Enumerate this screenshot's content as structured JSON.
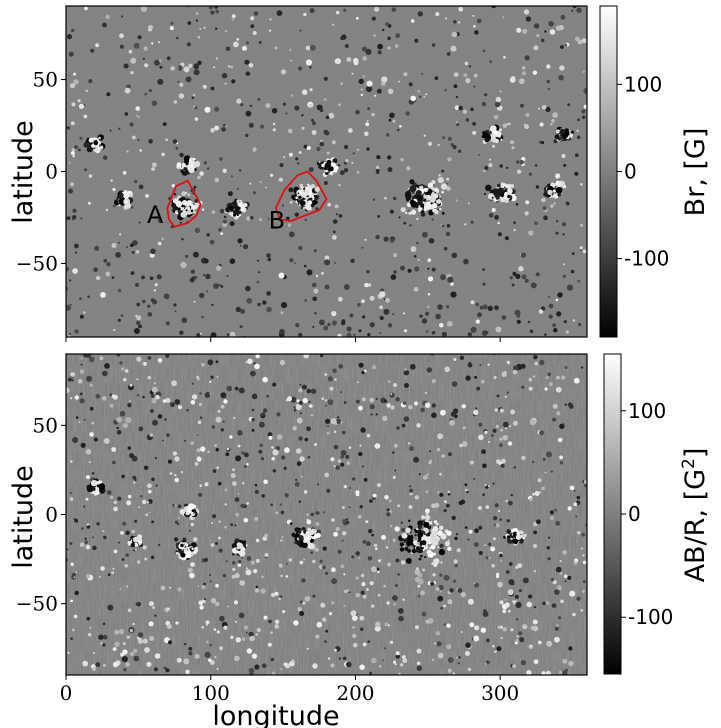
{
  "chart_data": [
    {
      "type": "heatmap",
      "title": "",
      "xlabel": "",
      "ylabel": "latitude",
      "xlim": [
        0,
        360
      ],
      "ylim": [
        -90,
        90
      ],
      "x_ticks": [
        0,
        100,
        200,
        300
      ],
      "y_ticks": [
        50,
        0,
        -50
      ],
      "y_tick_labels": [
        "50",
        "0",
        "−50"
      ],
      "x_tick_labels_shown": false,
      "colormap": "gray",
      "colorbar": {
        "label": "Br, [G]",
        "range": [
          -190,
          190
        ],
        "ticks": [
          100,
          0,
          -100
        ],
        "tick_labels": [
          "100",
          "0",
          "-100"
        ]
      },
      "active_regions": [
        {
          "x": 248,
          "y": -15,
          "strength": 1.0,
          "spread": 14
        },
        {
          "x": 165,
          "y": -14,
          "strength": 0.9,
          "spread": 9
        },
        {
          "x": 82,
          "y": -20,
          "strength": 0.8,
          "spread": 7
        },
        {
          "x": 182,
          "y": 3,
          "strength": 0.5,
          "spread": 6
        },
        {
          "x": 85,
          "y": 3,
          "strength": 0.5,
          "spread": 6
        },
        {
          "x": 20,
          "y": 15,
          "strength": 0.4,
          "spread": 5
        },
        {
          "x": 300,
          "y": -12,
          "strength": 0.6,
          "spread": 8
        },
        {
          "x": 336,
          "y": -10,
          "strength": 0.5,
          "spread": 6
        },
        {
          "x": 118,
          "y": -20,
          "strength": 0.5,
          "spread": 6
        },
        {
          "x": 40,
          "y": -15,
          "strength": 0.4,
          "spread": 5
        },
        {
          "x": 295,
          "y": 20,
          "strength": 0.4,
          "spread": 6
        },
        {
          "x": 345,
          "y": 20,
          "strength": 0.4,
          "spread": 5
        }
      ],
      "annotations": [
        {
          "text": "A",
          "x": 56,
          "y": -28
        },
        {
          "text": "B",
          "x": 140,
          "y": -31
        }
      ],
      "contours": [
        {
          "name": "A",
          "color": "#e01010",
          "points": [
            [
              70,
              -20
            ],
            [
              76,
              -8
            ],
            [
              84,
              -5
            ],
            [
              89,
              -12
            ],
            [
              93,
              -18
            ],
            [
              90,
              -24
            ],
            [
              84,
              -28
            ],
            [
              75,
              -30
            ],
            [
              71,
              -26
            ]
          ]
        },
        {
          "name": "B",
          "color": "#e01010",
          "points": [
            [
              145,
              -20
            ],
            [
              151,
              -10
            ],
            [
              160,
              -2
            ],
            [
              167,
              0
            ],
            [
              173,
              -5
            ],
            [
              180,
              -15
            ],
            [
              175,
              -21
            ],
            [
              165,
              -24
            ],
            [
              155,
              -27
            ],
            [
              148,
              -26
            ]
          ]
        }
      ]
    },
    {
      "type": "heatmap",
      "title": "",
      "xlabel": "longitude",
      "ylabel": "latitude",
      "xlim": [
        0,
        360
      ],
      "ylim": [
        -90,
        90
      ],
      "x_ticks": [
        0,
        100,
        200,
        300
      ],
      "x_tick_labels": [
        "0",
        "100",
        "200",
        "300"
      ],
      "y_ticks": [
        50,
        0,
        -50
      ],
      "y_tick_labels": [
        "50",
        "0",
        "−50"
      ],
      "colormap": "gray",
      "colorbar": {
        "label_main": "AB/R, [G",
        "label_sup": "2",
        "label_end": "]",
        "range": [
          -155,
          155
        ],
        "ticks": [
          100,
          0,
          -100
        ],
        "tick_labels": [
          "100",
          "0",
          "-100"
        ]
      },
      "active_regions": [
        {
          "x": 245,
          "y": -15,
          "strength": 1.0,
          "spread": 18
        },
        {
          "x": 165,
          "y": -13,
          "strength": 0.8,
          "spread": 8
        },
        {
          "x": 83,
          "y": -20,
          "strength": 0.8,
          "spread": 6
        },
        {
          "x": 85,
          "y": 2,
          "strength": 0.4,
          "spread": 5
        },
        {
          "x": 20,
          "y": 15,
          "strength": 0.4,
          "spread": 5
        },
        {
          "x": 310,
          "y": -12,
          "strength": 0.4,
          "spread": 6
        },
        {
          "x": 120,
          "y": -18,
          "strength": 0.4,
          "spread": 5
        },
        {
          "x": 48,
          "y": -15,
          "strength": 0.3,
          "spread": 4
        }
      ]
    }
  ]
}
